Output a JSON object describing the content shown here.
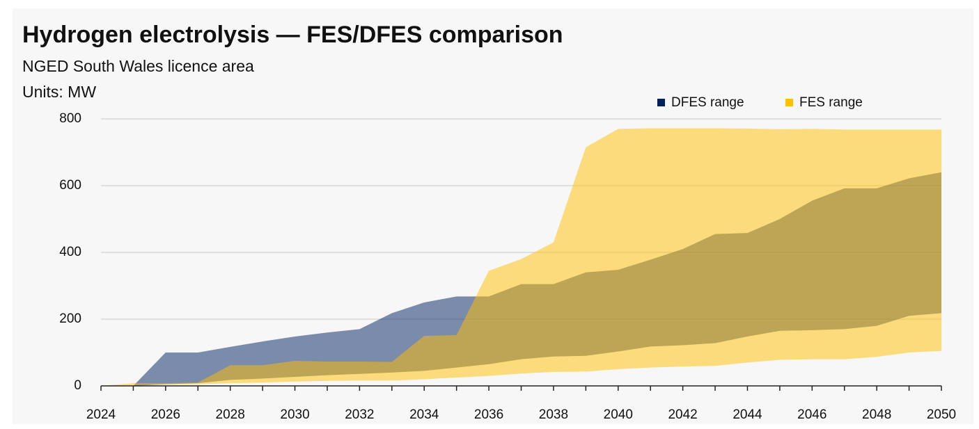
{
  "chart_data": {
    "type": "range-area",
    "title": "Hydrogen electrolysis — FES/DFES comparison",
    "subtitle": "NGED South Wales licence area",
    "units": "Units: MW",
    "x": [
      2024,
      2025,
      2026,
      2027,
      2028,
      2029,
      2030,
      2031,
      2032,
      2033,
      2034,
      2035,
      2036,
      2037,
      2038,
      2039,
      2040,
      2041,
      2042,
      2043,
      2044,
      2045,
      2046,
      2047,
      2048,
      2049,
      2050
    ],
    "series": [
      {
        "name": "DFES range",
        "color": "#002060",
        "low": [
          0,
          0,
          5,
          8,
          18,
          22,
          27,
          32,
          36,
          40,
          45,
          55,
          65,
          80,
          88,
          90,
          103,
          118,
          122,
          128,
          148,
          165,
          167,
          170,
          180,
          210,
          218
        ],
        "high": [
          0,
          0,
          100,
          100,
          117,
          133,
          148,
          160,
          170,
          218,
          250,
          268,
          268,
          305,
          305,
          340,
          348,
          378,
          410,
          455,
          458,
          500,
          555,
          592,
          592,
          622,
          640
        ]
      },
      {
        "name": "FES range",
        "color": "#ffc000",
        "low": [
          0,
          2,
          4,
          5,
          8,
          10,
          13,
          15,
          16,
          16,
          20,
          25,
          30,
          37,
          42,
          43,
          50,
          55,
          58,
          60,
          70,
          78,
          80,
          80,
          87,
          100,
          105
        ],
        "high": [
          0,
          8,
          8,
          10,
          62,
          62,
          75,
          73,
          73,
          72,
          150,
          152,
          345,
          380,
          430,
          715,
          770,
          772,
          772,
          772,
          771,
          769,
          770,
          768,
          768,
          768,
          768
        ]
      }
    ],
    "xlim": [
      2024,
      2050
    ],
    "xticks": [
      2024,
      2026,
      2028,
      2030,
      2032,
      2034,
      2036,
      2038,
      2040,
      2042,
      2044,
      2046,
      2048,
      2050
    ],
    "ylim": [
      0,
      800
    ],
    "yticks": [
      0,
      200,
      400,
      600,
      800
    ],
    "grid": true,
    "legend": "top-right"
  }
}
